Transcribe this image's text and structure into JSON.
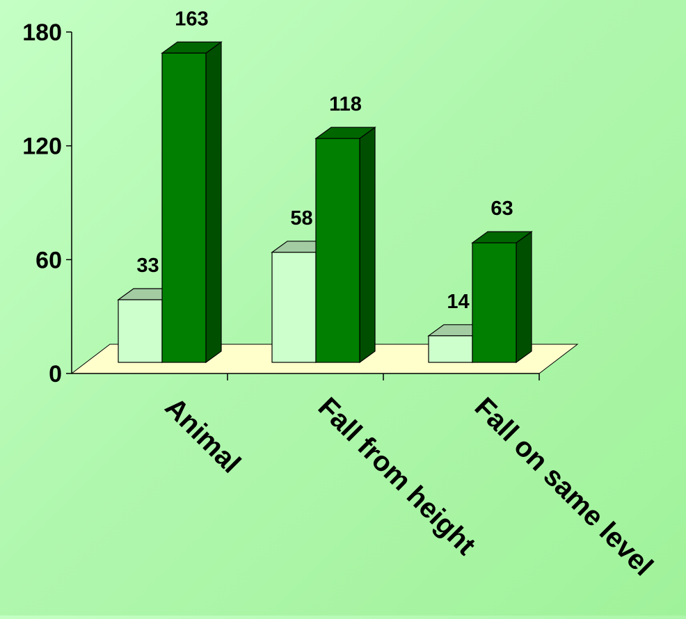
{
  "chart_data": {
    "type": "bar",
    "title": "",
    "xlabel": "",
    "ylabel": "",
    "categories": [
      "Animal",
      "Fall from height",
      "Fall on same level"
    ],
    "series": [
      {
        "values": [
          33,
          58,
          14
        ],
        "color": "#ccffcc"
      },
      {
        "values": [
          163,
          118,
          63
        ],
        "color": "#007f00"
      }
    ],
    "ylim": [
      0,
      180
    ],
    "yticks": [
      0,
      60,
      120,
      180
    ],
    "grid": false,
    "legend": "none",
    "floor_color": "#ffffcc"
  }
}
